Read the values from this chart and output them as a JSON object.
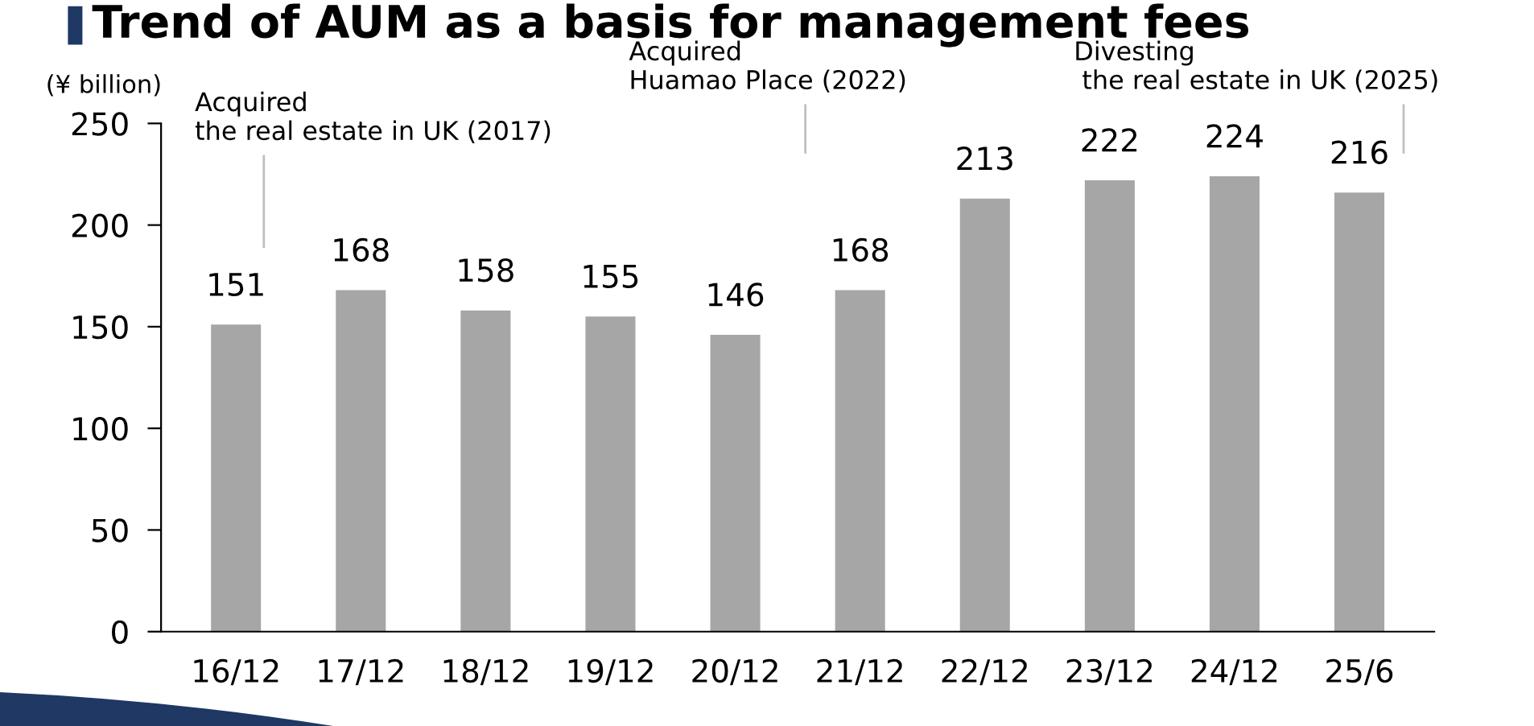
{
  "chart_data": {
    "type": "bar",
    "title": "Trend of AUM as a basis for management fees",
    "ylabel": "(¥ billion)",
    "categories": [
      "16/12",
      "17/12",
      "18/12",
      "19/12",
      "20/12",
      "21/12",
      "22/12",
      "23/12",
      "24/12",
      "25/6"
    ],
    "values": [
      151,
      168,
      158,
      155,
      146,
      168,
      213,
      222,
      224,
      216
    ],
    "color": "#a6a6a6",
    "ylim": [
      0,
      250
    ],
    "yticks": [
      0,
      50,
      100,
      150,
      200,
      250
    ],
    "grid": false,
    "data_labels": true,
    "annotations": [
      "Acquired\nthe real estate in UK (2017)",
      "Acquired\nHuamao Place (2022)",
      "Divesting\n the real estate in UK (2025)"
    ]
  }
}
